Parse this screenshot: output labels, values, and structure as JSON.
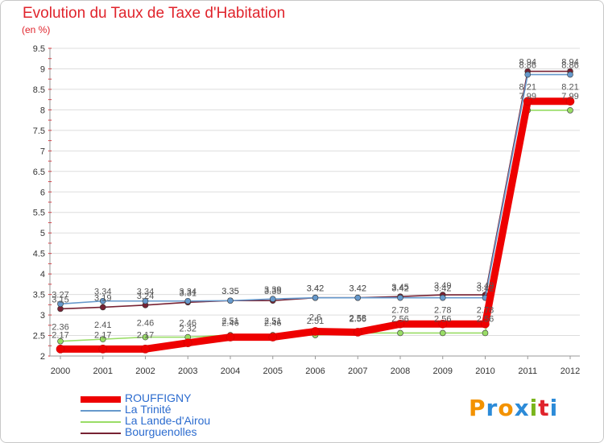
{
  "chart_data": {
    "type": "line",
    "title": "Evolution du Taux de Taxe d'Habitation",
    "subtitle": "(en %)",
    "x": [
      "2000",
      "2001",
      "2002",
      "2003",
      "2004",
      "2005",
      "2006",
      "2007",
      "2008",
      "2009",
      "2010",
      "2011",
      "2012"
    ],
    "ylim": [
      2,
      9.5
    ],
    "yticks": [
      "2",
      "2.5",
      "3",
      "3.5",
      "4",
      "4.5",
      "5",
      "5.5",
      "6",
      "6.5",
      "7",
      "7.5",
      "8",
      "8.5",
      "9",
      "9.5"
    ],
    "grid": true,
    "legend": "bottom-left",
    "series": [
      {
        "name": "ROUFFIGNY",
        "color": "#ee0000",
        "values": [
          2.17,
          2.17,
          2.17,
          2.32,
          2.46,
          2.46,
          2.6,
          2.58,
          2.78,
          2.78,
          2.78,
          8.21,
          8.21
        ],
        "labels": [
          "2.17",
          "2.17",
          "2.17",
          "2.32",
          "2.46",
          "2.46",
          "2.6",
          "2.58",
          "2.78",
          "2.78",
          "2.78",
          "8.21",
          "8.21"
        ]
      },
      {
        "name": "La Trinité",
        "color": "#6699cc",
        "values": [
          3.27,
          3.34,
          3.34,
          3.34,
          3.35,
          3.39,
          3.42,
          3.42,
          3.42,
          3.42,
          3.42,
          8.86,
          8.86
        ],
        "labels": [
          "3.27",
          "3.34",
          "3.34",
          "3.34",
          "3.35",
          "3.39",
          "3.42",
          "3.42",
          "3.42",
          "3.42",
          "3.42",
          "8.86",
          "8.86"
        ]
      },
      {
        "name": "La Lande-d'Airou",
        "color": "#99dd66",
        "values": [
          2.36,
          2.41,
          2.46,
          2.46,
          2.51,
          2.51,
          2.51,
          2.56,
          2.56,
          2.56,
          2.56,
          7.99,
          7.99
        ],
        "labels": [
          "2.36",
          "2.41",
          "2.46",
          "2.46",
          "2.51",
          "2.51",
          "2.51",
          "2.56",
          "2.56",
          "2.56",
          "2.56",
          "7.99",
          "7.99"
        ]
      },
      {
        "name": "Bourguenolles",
        "color": "#772233",
        "values": [
          3.15,
          3.19,
          3.24,
          3.31,
          3.35,
          3.35,
          3.42,
          3.42,
          3.45,
          3.49,
          3.49,
          8.94,
          8.94
        ],
        "labels": [
          "3.15",
          "3.19",
          "3.24",
          "3.31",
          "3.35",
          "3.35",
          "3.42",
          "3.42",
          "3.45",
          "3.49",
          "3.49",
          "8.94",
          "8.94"
        ]
      }
    ]
  },
  "logo": {
    "text": "Proxiti",
    "colors": [
      "#f39200",
      "#2c8bd8",
      "#f39200",
      "#2c8bd8",
      "#7ab51d",
      "#e0242c",
      "#2c8bd8"
    ]
  }
}
